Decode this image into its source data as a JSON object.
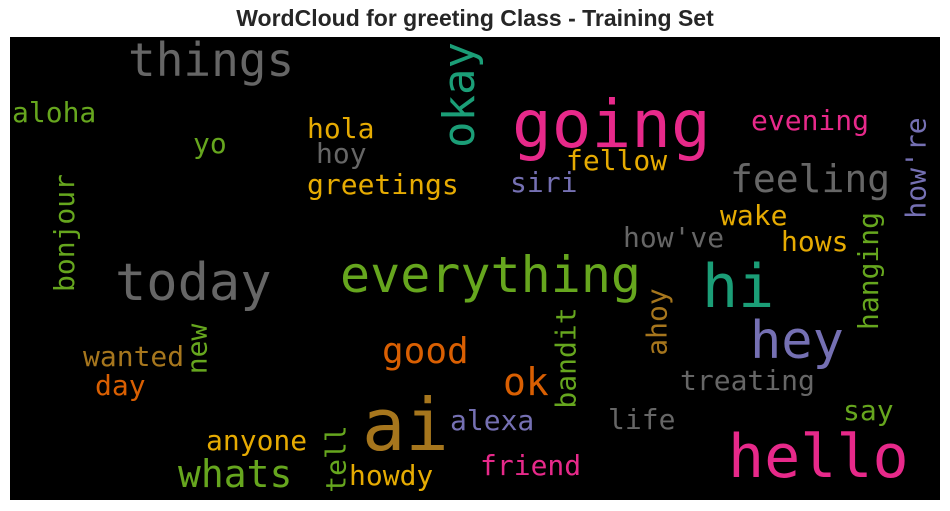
{
  "title": "WordCloud for greeting Class - Training Set",
  "words": {
    "going": {
      "text": "going",
      "color": "#e7298a"
    },
    "hello": {
      "text": "hello",
      "color": "#e7298a"
    },
    "ai": {
      "text": "ai",
      "color": "#a6761d"
    },
    "everything": {
      "text": "everything",
      "color": "#66a61e"
    },
    "today": {
      "text": "today",
      "color": "#666666"
    },
    "hi": {
      "text": "hi",
      "color": "#1b9e77"
    },
    "hey": {
      "text": "hey",
      "color": "#7570b3"
    },
    "things": {
      "text": "things",
      "color": "#666666"
    },
    "okay": {
      "text": "okay",
      "color": "#1b9e77"
    },
    "feeling": {
      "text": "feeling",
      "color": "#666666"
    },
    "whats": {
      "text": "whats",
      "color": "#66a61e"
    },
    "good": {
      "text": "good",
      "color": "#d95f02"
    },
    "ok": {
      "text": "ok",
      "color": "#d95f02"
    },
    "aloha": {
      "text": "aloha",
      "color": "#66a61e"
    },
    "evening": {
      "text": "evening",
      "color": "#e7298a"
    },
    "hola": {
      "text": "hola",
      "color": "#e6ab02"
    },
    "yo": {
      "text": "yo",
      "color": "#66a61e"
    },
    "hoy": {
      "text": "hoy",
      "color": "#666666"
    },
    "fellow": {
      "text": "fellow",
      "color": "#e6ab02"
    },
    "greetings": {
      "text": "greetings",
      "color": "#e6ab02"
    },
    "siri": {
      "text": "siri",
      "color": "#7570b3"
    },
    "bonjour": {
      "text": "bonjour",
      "color": "#66a61e"
    },
    "how_re": {
      "text": "how're",
      "color": "#7570b3"
    },
    "wake": {
      "text": "wake",
      "color": "#e6ab02"
    },
    "how_ve": {
      "text": "how've",
      "color": "#666666"
    },
    "hows": {
      "text": "hows",
      "color": "#e6ab02"
    },
    "hanging": {
      "text": "hanging",
      "color": "#66a61e"
    },
    "ahoy": {
      "text": "ahoy",
      "color": "#a6761d"
    },
    "bandit": {
      "text": "bandit",
      "color": "#66a61e"
    },
    "new": {
      "text": "new",
      "color": "#66a61e"
    },
    "wanted": {
      "text": "wanted",
      "color": "#a6761d"
    },
    "day": {
      "text": "day",
      "color": "#d95f02"
    },
    "treating": {
      "text": "treating",
      "color": "#666666"
    },
    "say": {
      "text": "say",
      "color": "#66a61e"
    },
    "alexa": {
      "text": "alexa",
      "color": "#7570b3"
    },
    "life": {
      "text": "life",
      "color": "#666666"
    },
    "anyone": {
      "text": "anyone",
      "color": "#e6ab02"
    },
    "tell": {
      "text": "tell",
      "color": "#66a61e"
    },
    "howdy": {
      "text": "howdy",
      "color": "#e6ab02"
    },
    "friend": {
      "text": "friend",
      "color": "#e7298a"
    }
  }
}
